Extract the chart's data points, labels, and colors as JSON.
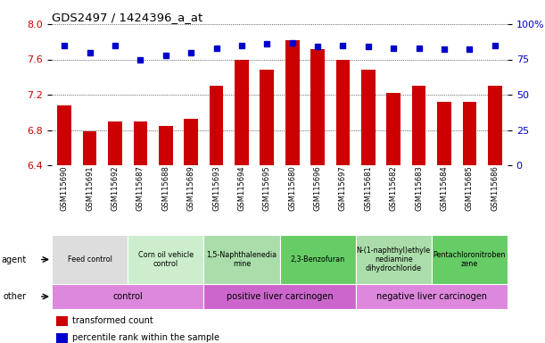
{
  "title": "GDS2497 / 1424396_a_at",
  "samples": [
    "GSM115690",
    "GSM115691",
    "GSM115692",
    "GSM115687",
    "GSM115688",
    "GSM115689",
    "GSM115693",
    "GSM115694",
    "GSM115695",
    "GSM115680",
    "GSM115696",
    "GSM115697",
    "GSM115681",
    "GSM115682",
    "GSM115683",
    "GSM115684",
    "GSM115685",
    "GSM115686"
  ],
  "transformed_count": [
    7.08,
    6.78,
    6.9,
    6.9,
    6.85,
    6.93,
    7.3,
    7.6,
    7.48,
    7.82,
    7.72,
    7.6,
    7.48,
    7.22,
    7.3,
    7.12,
    7.12,
    7.3
  ],
  "percentile_rank": [
    85,
    80,
    85,
    75,
    78,
    80,
    83,
    85,
    86,
    87,
    84,
    85,
    84,
    83,
    83,
    82,
    82,
    85
  ],
  "ylim_left": [
    6.4,
    8.0
  ],
  "ylim_right": [
    0,
    100
  ],
  "yticks_left": [
    6.4,
    6.8,
    7.2,
    7.6,
    8.0
  ],
  "yticks_right": [
    0,
    25,
    50,
    75,
    100
  ],
  "ytick_labels_right": [
    "0",
    "25",
    "50",
    "75",
    "100%"
  ],
  "bar_color": "#cc0000",
  "dot_color": "#0000cc",
  "grid_color": "#000000",
  "agent_groups": [
    {
      "label": "Feed control",
      "start": 0,
      "end": 3,
      "color": "#dddddd"
    },
    {
      "label": "Corn oil vehicle\ncontrol",
      "start": 3,
      "end": 6,
      "color": "#cceecc"
    },
    {
      "label": "1,5-Naphthalenedia\nmine",
      "start": 6,
      "end": 9,
      "color": "#aaddaa"
    },
    {
      "label": "2,3-Benzofuran",
      "start": 9,
      "end": 12,
      "color": "#66cc66"
    },
    {
      "label": "N-(1-naphthyl)ethyle\nnediamine\ndihydrochloride",
      "start": 12,
      "end": 15,
      "color": "#aaddaa"
    },
    {
      "label": "Pentachloronitroben\nzene",
      "start": 15,
      "end": 18,
      "color": "#66cc66"
    }
  ],
  "other_groups": [
    {
      "label": "control",
      "start": 0,
      "end": 6,
      "color": "#dd88dd"
    },
    {
      "label": "positive liver carcinogen",
      "start": 6,
      "end": 12,
      "color": "#cc66cc"
    },
    {
      "label": "negative liver carcinogen",
      "start": 12,
      "end": 18,
      "color": "#dd88dd"
    }
  ],
  "legend_items": [
    {
      "label": "transformed count",
      "color": "#cc0000"
    },
    {
      "label": "percentile rank within the sample",
      "color": "#0000cc"
    }
  ]
}
